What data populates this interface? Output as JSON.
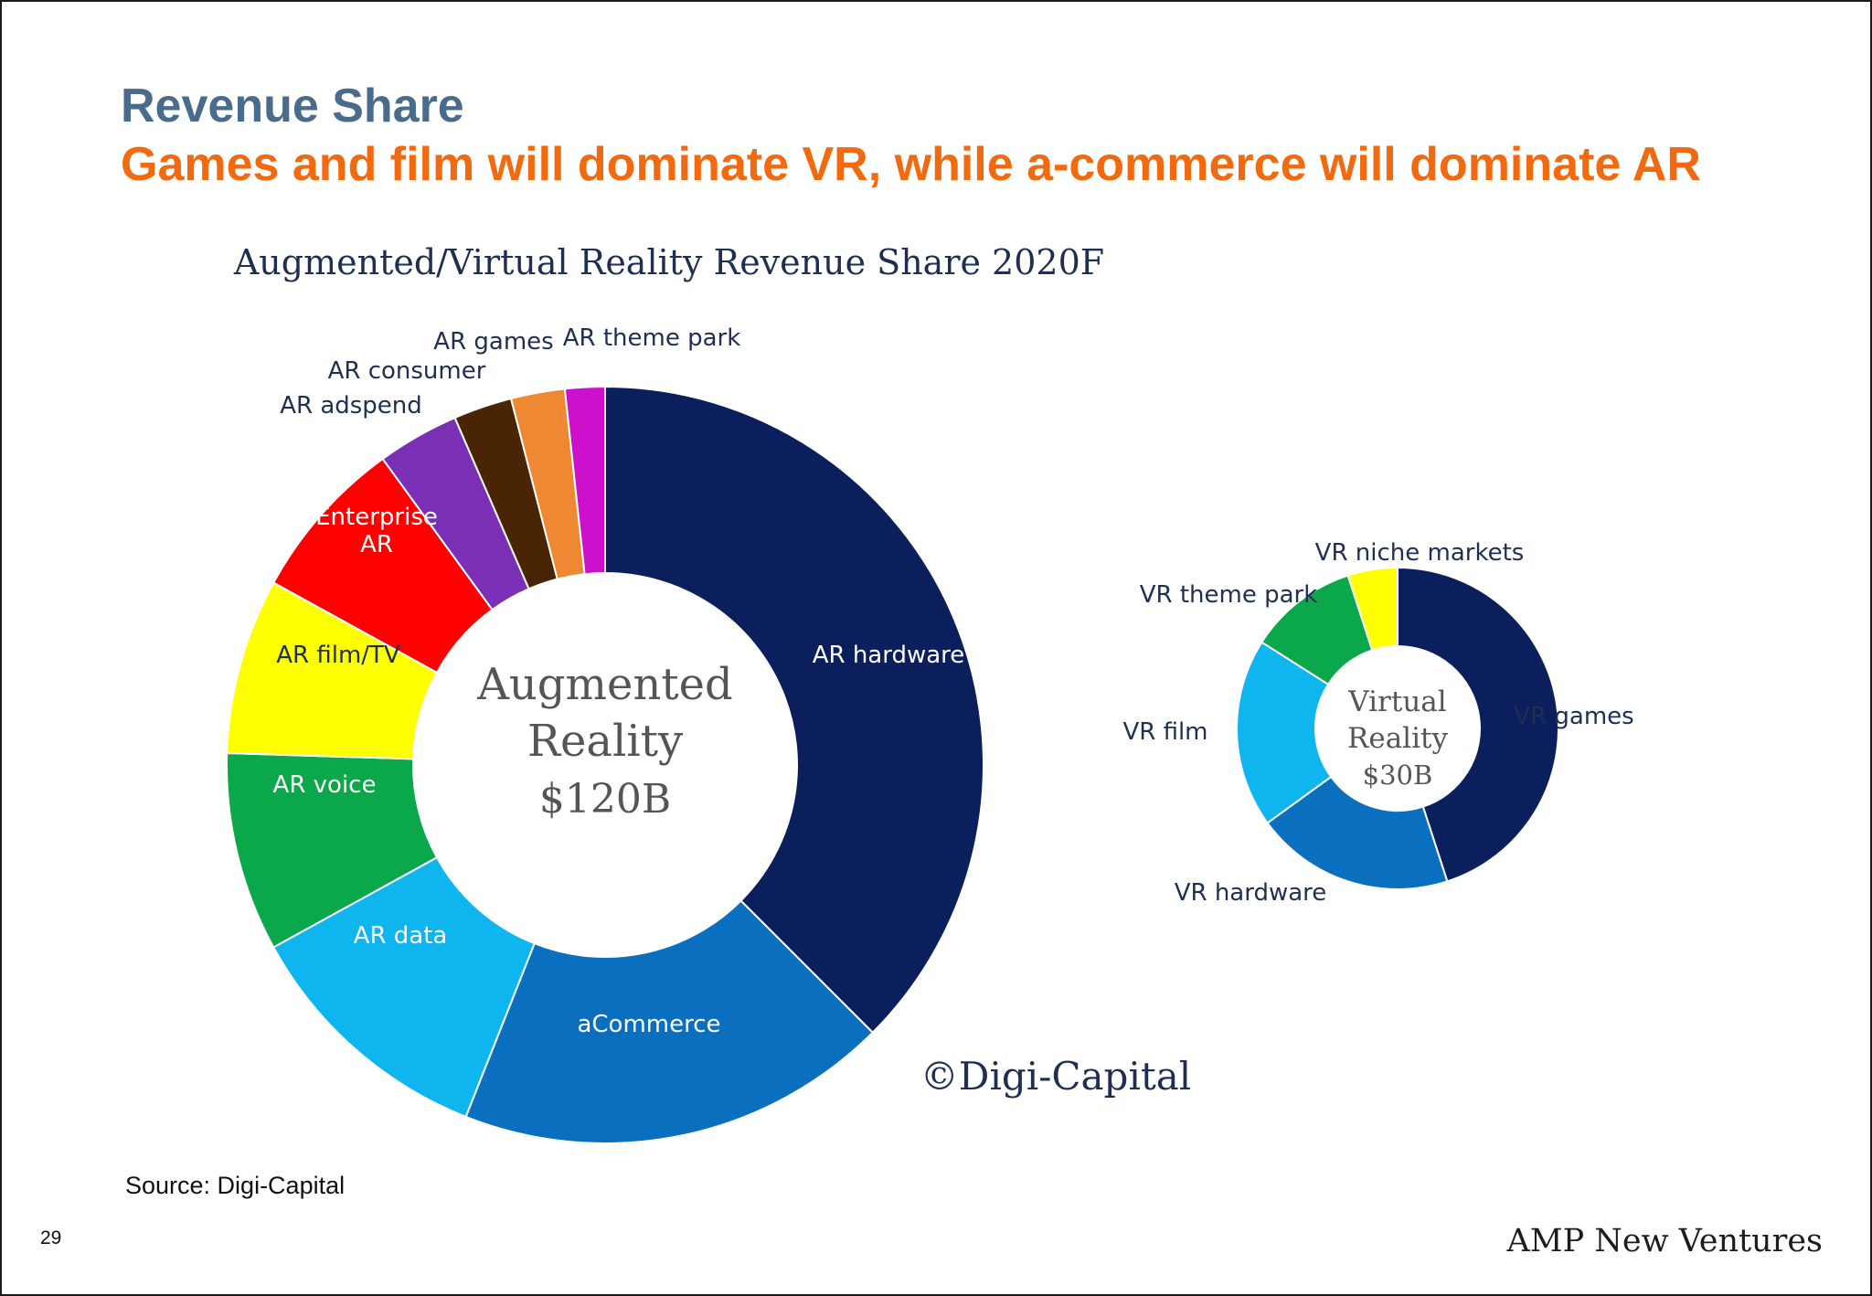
{
  "slide": {
    "title": "Revenue Share",
    "subtitle": "Games and film will dominate VR, while a-commerce will dominate AR",
    "source": "Source: Digi-Capital",
    "page_number": "29",
    "brand": "AMP New Ventures"
  },
  "chart_data": [
    {
      "type": "pie",
      "title": "Augmented/Virtual Reality Revenue Share 2020F",
      "center_label": [
        "Augmented",
        "Reality",
        "$120B"
      ],
      "watermark": "©Digi-Capital",
      "slices": [
        {
          "label": "AR hardware",
          "share": 37.5,
          "color": "#0b1f5c",
          "label_pos": "inside",
          "text_color": "#ffffff"
        },
        {
          "label": "aCommerce",
          "share": 18.5,
          "color": "#0b6fbf",
          "label_pos": "inside",
          "text_color": "#ffffff"
        },
        {
          "label": "AR data",
          "share": 11.0,
          "color": "#0fb5ee",
          "label_pos": "inside",
          "text_color": "#ffffff"
        },
        {
          "label": "AR voice",
          "share": 8.5,
          "color": "#0aa84a",
          "label_pos": "inside",
          "text_color": "#ffffff"
        },
        {
          "label": "AR film/TV",
          "share": 7.5,
          "color": "#ffff00",
          "label_pos": "inside",
          "text_color": "#1e2f52"
        },
        {
          "label": "Enterprise AR",
          "share": 7.0,
          "color": "#ff0000",
          "label_pos": "inside",
          "text_color": "#ffffff"
        },
        {
          "label": "AR adspend",
          "share": 3.5,
          "color": "#7b2fb4",
          "label_pos": "outside",
          "text_color": "#1e2f52"
        },
        {
          "label": "AR consumer",
          "share": 2.5,
          "color": "#4a2505",
          "label_pos": "outside",
          "text_color": "#1e2f52"
        },
        {
          "label": "AR games",
          "share": 2.3,
          "color": "#ef8833",
          "label_pos": "outside",
          "text_color": "#1e2f52"
        },
        {
          "label": "AR theme park",
          "share": 1.7,
          "color": "#cc10cc",
          "label_pos": "outside",
          "text_color": "#1e2f52"
        }
      ]
    },
    {
      "type": "pie",
      "center_label": [
        "Virtual",
        "Reality",
        "$30B"
      ],
      "slices": [
        {
          "label": "VR games",
          "share": 45,
          "color": "#0b1f5c",
          "label_pos": "outside",
          "text_color": "#1e2f52"
        },
        {
          "label": "VR hardware",
          "share": 20,
          "color": "#0b6fbf",
          "label_pos": "outside",
          "text_color": "#1e2f52"
        },
        {
          "label": "VR film",
          "share": 19,
          "color": "#0fb5ee",
          "label_pos": "outside",
          "text_color": "#1e2f52"
        },
        {
          "label": "VR theme park",
          "share": 11,
          "color": "#0aa84a",
          "label_pos": "outside",
          "text_color": "#1e2f52"
        },
        {
          "label": "VR niche markets",
          "share": 5,
          "color": "#ffff00",
          "label_pos": "outside",
          "text_color": "#1e2f52"
        }
      ]
    }
  ]
}
